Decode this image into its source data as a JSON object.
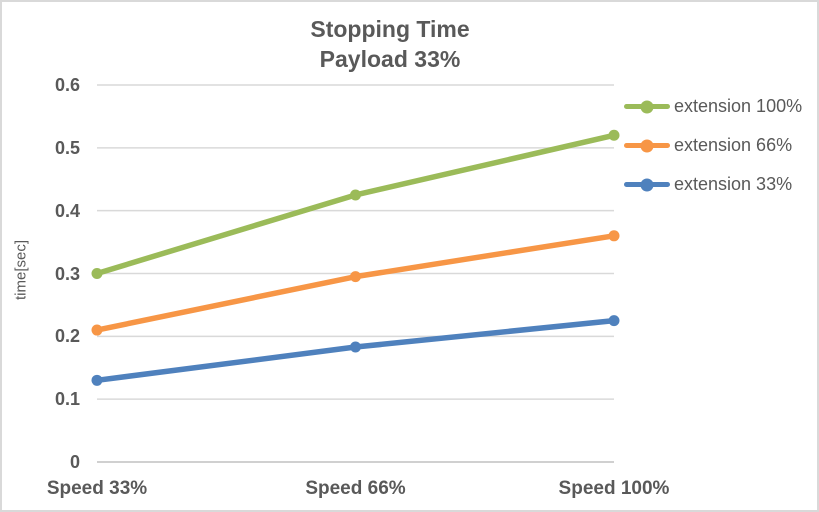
{
  "chart_data": {
    "type": "line",
    "title": "Stopping Time",
    "subtitle": "Payload 33%",
    "categories": [
      "Speed 33%",
      "Speed 66%",
      "Speed 100%"
    ],
    "series": [
      {
        "name": "extension 100%",
        "color": "#9BBB59",
        "values": [
          0.3,
          0.425,
          0.52
        ]
      },
      {
        "name": "extension 66%",
        "color": "#F79646",
        "values": [
          0.21,
          0.295,
          0.36
        ]
      },
      {
        "name": "extension 33%",
        "color": "#4F81BD",
        "values": [
          0.13,
          0.183,
          0.225
        ]
      }
    ],
    "xlabel": "",
    "ylabel": "time[sec]",
    "ylim": [
      0,
      0.6
    ],
    "yticks": [
      0,
      0.1,
      0.2,
      0.3,
      0.4,
      0.5,
      0.6
    ],
    "ytick_labels": [
      "0",
      "0.1",
      "0.2",
      "0.3",
      "0.4",
      "0.5",
      "0.6"
    ],
    "grid": true,
    "legend_position": "right",
    "marker": "circle"
  },
  "colors": {
    "grid": "#D9D9D9",
    "axis": "#D0D0D0",
    "text": "#595959",
    "border": "#D9D9D9",
    "background": "#FFFFFF"
  }
}
